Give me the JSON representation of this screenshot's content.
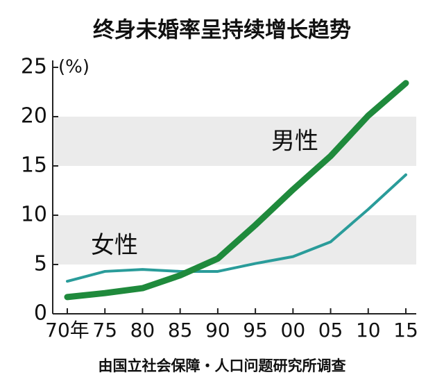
{
  "chart_data": {
    "type": "line",
    "title": "终身未婚率呈持续增长趋势",
    "y_unit": "(%)",
    "source": "由国立社会保障・人口问题研究所调查",
    "categories": [
      "70年",
      "75",
      "80",
      "85",
      "90",
      "95",
      "00",
      "05",
      "10",
      "15"
    ],
    "series": [
      {
        "name": "男性",
        "color": "#1f8a3c",
        "values": [
          1.7,
          2.1,
          2.6,
          3.9,
          5.6,
          9.0,
          12.6,
          16.0,
          20.1,
          23.4
        ]
      },
      {
        "name": "女性",
        "color": "#2a9c9a",
        "values": [
          3.3,
          4.3,
          4.5,
          4.3,
          4.3,
          5.1,
          5.8,
          7.3,
          10.6,
          14.1
        ]
      }
    ],
    "ylim": [
      0,
      25
    ],
    "yticks": [
      0,
      5,
      10,
      15,
      20,
      25
    ],
    "grid": "bands"
  }
}
